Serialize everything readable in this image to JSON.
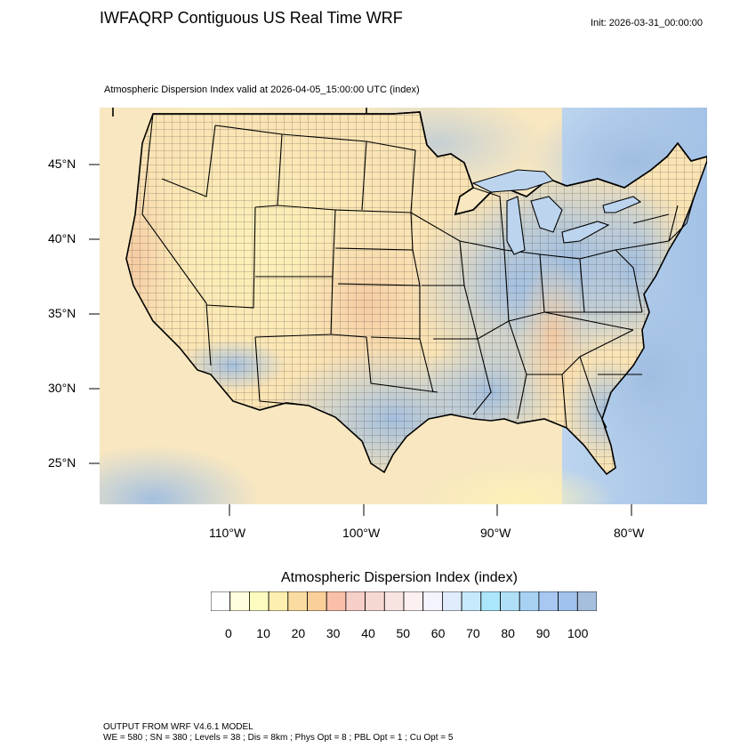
{
  "title": "IWFAQRP Contiguous US Real Time WRF",
  "init_time": "Init: 2026-03-31_00:00:00",
  "subtitle": "Atmospheric Dispersion Index valid at 2026-04-05_15:00:00 UTC   (index)",
  "map": {
    "lat_labels": [
      "45°N",
      "40°N",
      "35°N",
      "30°N",
      "25°N"
    ],
    "lon_labels": [
      "110°W",
      "100°W",
      "90°W",
      "80°W"
    ],
    "colors": {
      "land_low": "#fde9a8",
      "land_mid": "#f7c9a8",
      "land_high": "#9fb8d8",
      "water_high": "#a9c6e8",
      "water_low": "#f6e6b8",
      "boundary": "#000000"
    }
  },
  "colorbar": {
    "title": "Atmospheric Dispersion Index  (index)",
    "labels": [
      "0",
      "10",
      "20",
      "30",
      "40",
      "50",
      "60",
      "70",
      "80",
      "90",
      "100"
    ],
    "colors": [
      "#ffffff",
      "#ffffdd",
      "#fdfcc0",
      "#fdefb0",
      "#fbdca0",
      "#fbcf99",
      "#f9bfa8",
      "#f5cfc8",
      "#f5d8d2",
      "#f7e3e0",
      "#fcf0f0",
      "#f4f4fe",
      "#e0ecfc",
      "#c7e9fc",
      "#ace6fc",
      "#b0e0f8",
      "#a8d2f4",
      "#a8c8f2",
      "#a0c2ec",
      "#a6bfdc"
    ]
  },
  "footer": {
    "line1": "OUTPUT FROM WRF V4.6.1 MODEL",
    "line2": "WE = 580 ; SN = 380 ; Levels = 38 ; Dis = 8km ; Phys Opt = 8 ; PBL Opt = 1 ; Cu Opt = 5"
  }
}
